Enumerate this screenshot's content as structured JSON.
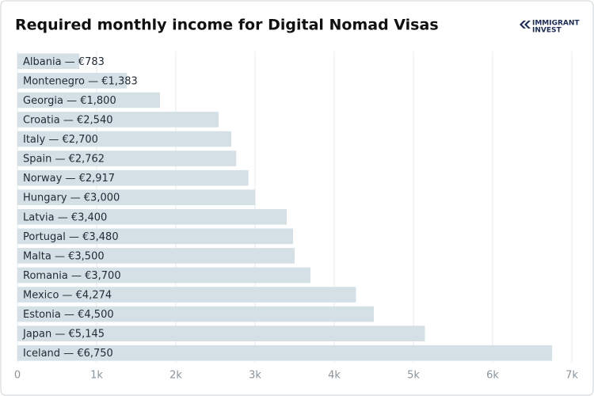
{
  "chart_data": {
    "type": "hbar",
    "title": "Required monthly income for Digital Nomad Visas",
    "categories": [
      "Albania — €783",
      "Montenegro — €1,383",
      "Georgia — €1,800",
      "Croatia — €2,540",
      "Italy — €2,700",
      "Spain — €2,762",
      "Norway — €2,917",
      "Hungary — €3,000",
      "Latvia — €3,400",
      "Portugal — €3,480",
      "Malta — €3,500",
      "Romania — €3,700",
      "Mexico — €4,274",
      "Estonia — €4,500",
      "Japan — €5,145",
      "Iceland — €6,750"
    ],
    "values": [
      783,
      1383,
      1800,
      2540,
      2700,
      2762,
      2917,
      3000,
      3400,
      3480,
      3500,
      3700,
      4274,
      4500,
      5145,
      6750
    ],
    "color": "#d5e0e6",
    "xlim": [
      0,
      7200
    ],
    "xticks": [
      0,
      {
        "value": 1000,
        "label": "1k"
      },
      {
        "value": 2000,
        "label": "2k"
      },
      {
        "value": 3000,
        "label": "3k"
      },
      {
        "value": 4000,
        "label": "4k"
      },
      {
        "value": 5000,
        "label": "5k"
      },
      {
        "value": 6000,
        "label": "6k"
      },
      {
        "value": 7000,
        "label": "7k"
      }
    ],
    "grid": true
  },
  "logo": {
    "line1": "IMMIGRANT",
    "line2": "INVEST"
  }
}
